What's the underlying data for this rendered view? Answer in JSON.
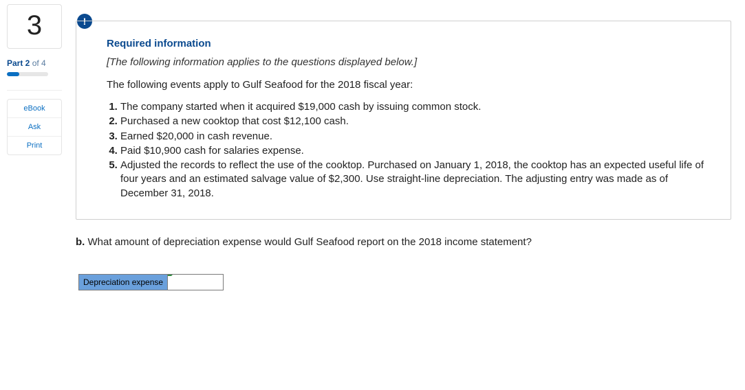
{
  "sidebar": {
    "question_number": "3",
    "part_bold": "Part 2",
    "part_rest": " of 4",
    "progress_pct": 30,
    "links": [
      "eBook",
      "Ask",
      "Print"
    ]
  },
  "badge": "!",
  "required_title": "Required information",
  "italic_note": "[The following information applies to the questions displayed below.]",
  "intro": "The following events apply to Gulf Seafood for the 2018 fiscal year:",
  "events": [
    "The company started when it acquired $19,000 cash by issuing common stock.",
    "Purchased a new cooktop that cost $12,100 cash.",
    "Earned $20,000 in cash revenue.",
    "Paid $10,900 cash for salaries expense.",
    "Adjusted the records to reflect the use of the cooktop. Purchased on January 1, 2018, the cooktop has an expected useful life of four years and an estimated salvage value of $2,300. Use straight-line depreciation. The adjusting entry was made as of December 31, 2018."
  ],
  "question_letter": "b.",
  "question_text": " What amount of depreciation expense would Gulf Seafood report on the 2018 income statement?",
  "answer_label": "Depreciation expense",
  "answer_value": "",
  "colors": {
    "accent": "#0b4a8f",
    "link": "#0b6fc2",
    "input_header_bg": "#6aa0dc",
    "triangle": "#2e8b3d"
  }
}
